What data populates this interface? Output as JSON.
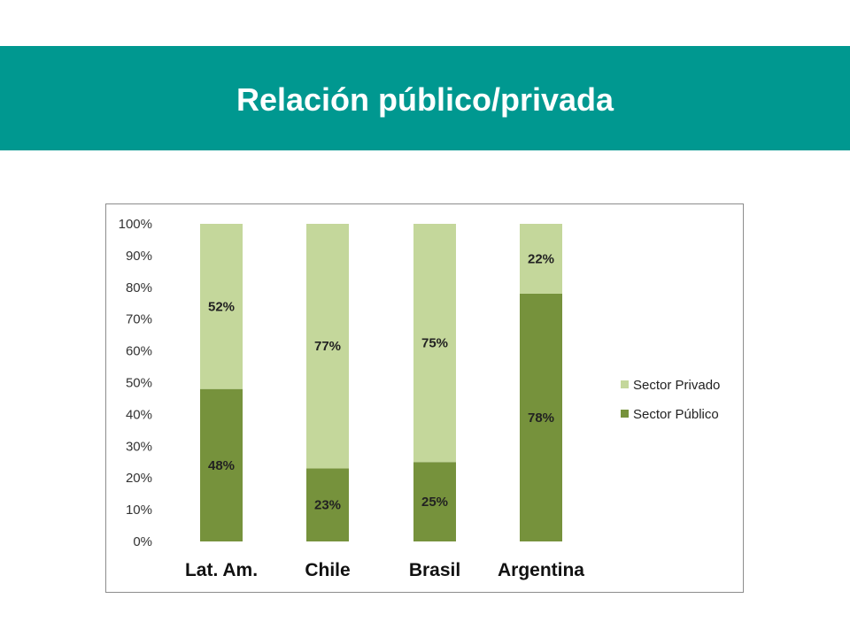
{
  "page": {
    "title": "Relación público/privada"
  },
  "colors": {
    "banner": "#009890",
    "sector_privado": "#c4d79b",
    "sector_publico": "#76923c"
  },
  "chart_data": {
    "type": "bar",
    "stacked": true,
    "categories": [
      "Lat. Am.",
      "Chile",
      "Brasil",
      "Argentina"
    ],
    "series": [
      {
        "name": "Sector Público",
        "values": [
          48,
          23,
          25,
          78
        ],
        "labels": [
          "48%",
          "23%",
          "25%",
          "78%"
        ],
        "color": "#76923c"
      },
      {
        "name": "Sector Privado",
        "values": [
          52,
          77,
          75,
          22
        ],
        "labels": [
          "52%",
          "77%",
          "75%",
          "22%"
        ],
        "color": "#c4d79b"
      }
    ],
    "y_ticks": [
      "0%",
      "10%",
      "20%",
      "30%",
      "40%",
      "50%",
      "60%",
      "70%",
      "80%",
      "90%",
      "100%"
    ],
    "ylim": [
      0,
      100
    ],
    "legend_order": [
      "Sector Privado",
      "Sector Público"
    ],
    "legend_position": "right",
    "grid": false
  }
}
